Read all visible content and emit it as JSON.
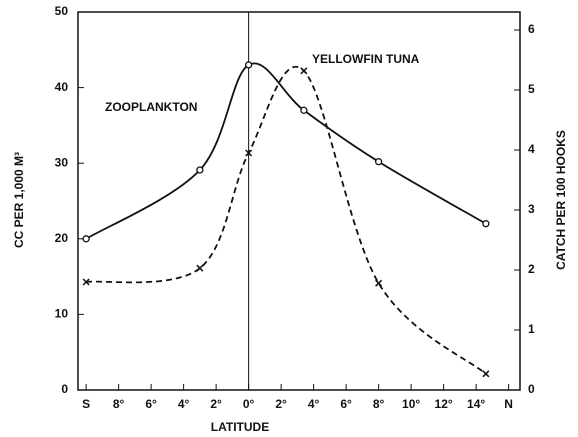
{
  "chart_data": {
    "type": "line",
    "xlabel": "LATITUDE",
    "ylabel": "CC PER 1,000 M³",
    "y2label": "CATCH PER 100 HOOKS",
    "x": [
      -10,
      -3,
      0,
      3.4,
      8,
      14.6
    ],
    "series": [
      {
        "name": "ZOOPLANKTON",
        "color": "#111111",
        "style": "solid",
        "marker": "circle",
        "axis": "y",
        "values": [
          20,
          29.1,
          43,
          37,
          30.2,
          22
        ]
      },
      {
        "name": "YELLOWFIN TUNA",
        "color": "#111111",
        "style": "dashed",
        "marker": "x",
        "axis": "y2",
        "values": [
          1.8,
          2.03,
          3.95,
          5.32,
          1.78,
          0.27
        ]
      }
    ],
    "xlim": [
      -10.5,
      16.7
    ],
    "xticks": [
      {
        "value": -10,
        "label": "S"
      },
      {
        "value": -8,
        "label": "8°"
      },
      {
        "value": -6,
        "label": "6°"
      },
      {
        "value": -4,
        "label": "4°"
      },
      {
        "value": -2,
        "label": "2°"
      },
      {
        "value": 0,
        "label": "0°"
      },
      {
        "value": 2,
        "label": "2°"
      },
      {
        "value": 4,
        "label": "4°"
      },
      {
        "value": 6,
        "label": "6°"
      },
      {
        "value": 8,
        "label": "8°"
      },
      {
        "value": 10,
        "label": "10°"
      },
      {
        "value": 12,
        "label": "12°"
      },
      {
        "value": 14,
        "label": "14°"
      },
      {
        "value": 16,
        "label": "N"
      }
    ],
    "ylim": [
      0,
      50
    ],
    "yticks": [
      0,
      10,
      20,
      30,
      40,
      50
    ],
    "y2lim": [
      0,
      6.3
    ],
    "y2ticks": [
      0,
      1,
      2,
      3,
      4,
      5,
      6
    ],
    "vline": 0,
    "grid": false
  }
}
